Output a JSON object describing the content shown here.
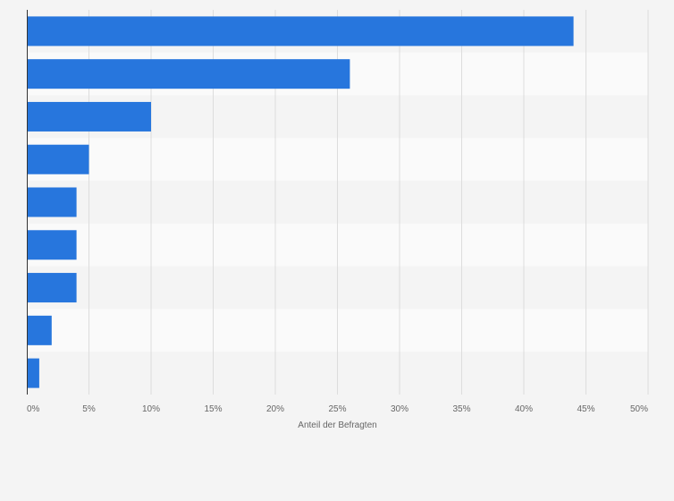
{
  "colors": {
    "bar": "#2776dd",
    "band_dark": "#f4f4f4",
    "band_light": "#fafafa",
    "grid": "#dddddd",
    "axis": "#333333"
  },
  "chart_data": {
    "type": "bar",
    "orientation": "horizontal",
    "title": "",
    "xlabel": "Anteil der Befragten",
    "ylabel": "",
    "xlim": [
      0,
      50
    ],
    "x_ticks": [
      0,
      5,
      10,
      15,
      20,
      25,
      30,
      35,
      40,
      45,
      50
    ],
    "x_tick_labels": [
      "0%",
      "5%",
      "10%",
      "15%",
      "20%",
      "25%",
      "30%",
      "35%",
      "40%",
      "45%",
      "50%"
    ],
    "categories": [
      "",
      "",
      "",
      "",
      "",
      "",
      "",
      "",
      ""
    ],
    "values": [
      44,
      26,
      10,
      5,
      4,
      4,
      4,
      2,
      1
    ],
    "unit": "%",
    "grid": true,
    "legend": "none"
  }
}
